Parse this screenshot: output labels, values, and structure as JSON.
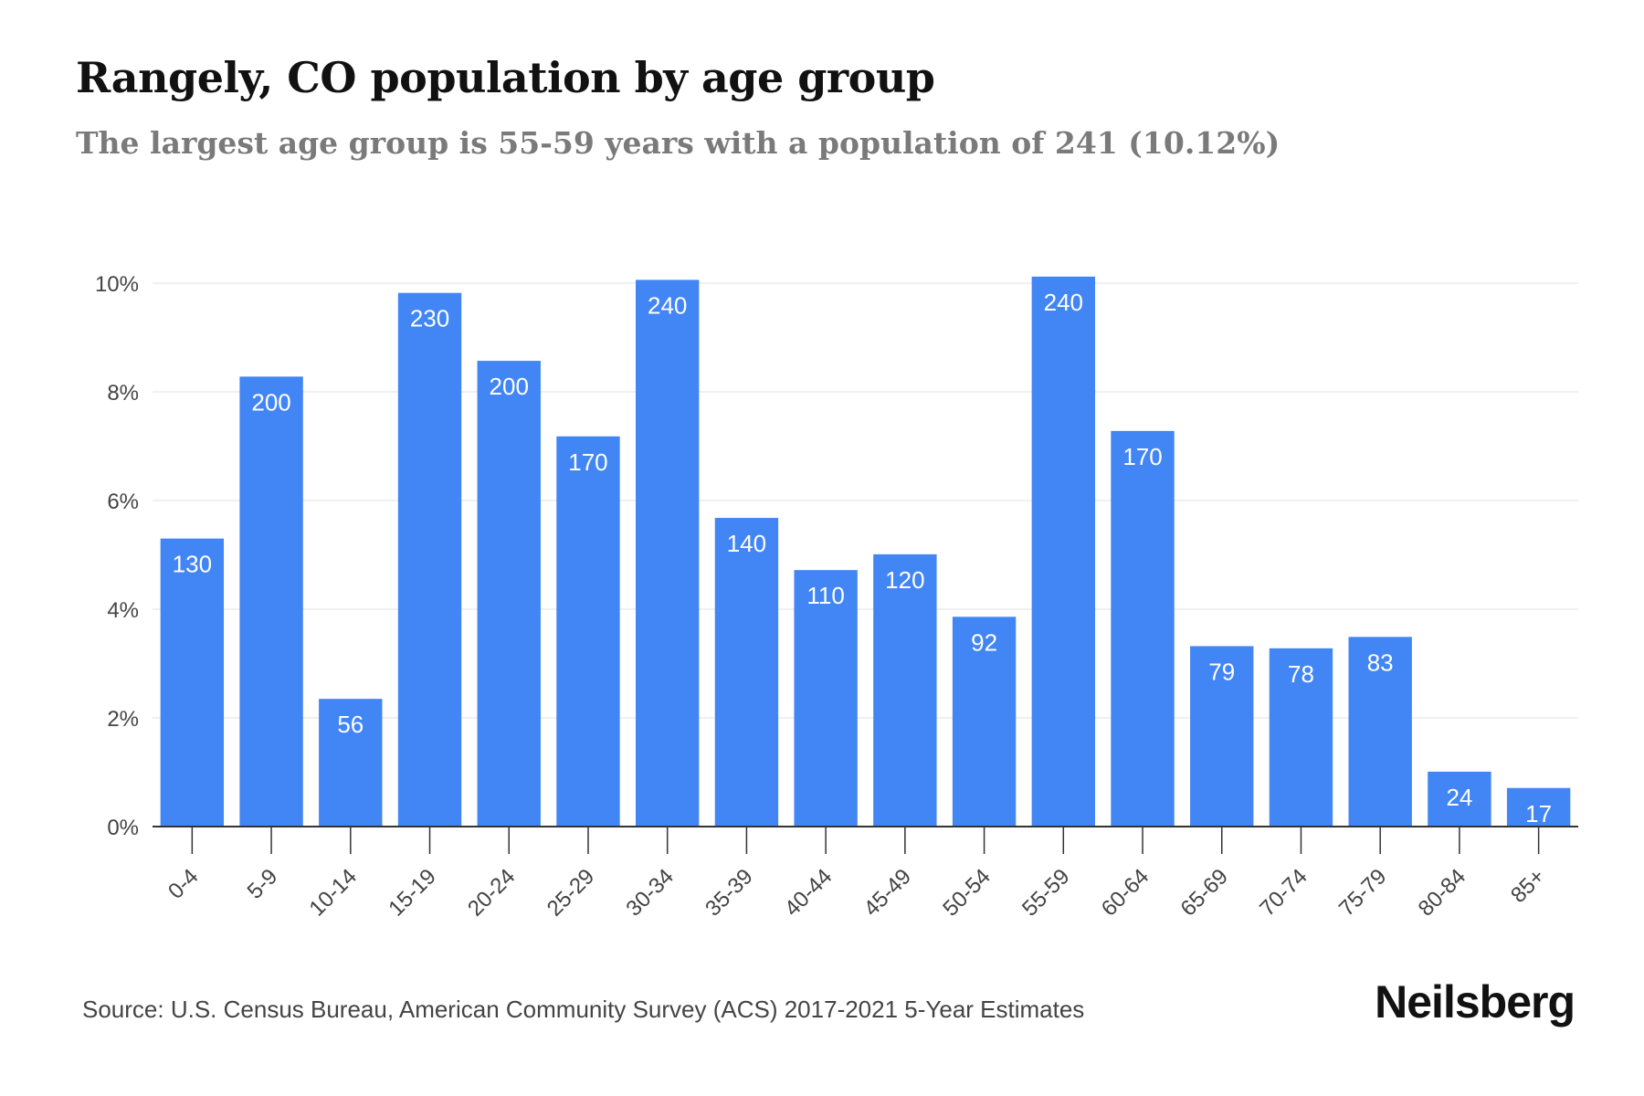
{
  "header": {
    "title": "Rangely, CO population by age group",
    "subtitle": "The largest age group is 55-59 years with a population of 241 (10.12%)"
  },
  "footer": {
    "source": "Source: U.S. Census Bureau, American Community Survey (ACS) 2017-2021 5-Year Estimates",
    "brand": "Neilsberg"
  },
  "chart_data": {
    "type": "bar",
    "title": "Rangely, CO population by age group",
    "subtitle": "The largest age group is 55-59 years with a population of 241 (10.12%)",
    "xlabel": "",
    "ylabel": "",
    "categories": [
      "0-4",
      "5-9",
      "10-14",
      "15-19",
      "20-24",
      "25-29",
      "30-34",
      "35-39",
      "40-44",
      "45-49",
      "50-54",
      "55-59",
      "60-64",
      "65-69",
      "70-74",
      "75-79",
      "80-84",
      "85+"
    ],
    "values": [
      5.3,
      8.28,
      2.35,
      9.82,
      8.57,
      7.18,
      10.06,
      5.68,
      4.72,
      5.01,
      3.86,
      10.12,
      7.28,
      3.32,
      3.28,
      3.49,
      1.01,
      0.71
    ],
    "data_labels": [
      "130",
      "200",
      "56",
      "230",
      "200",
      "170",
      "240",
      "140",
      "110",
      "120",
      "92",
      "240",
      "170",
      "79",
      "78",
      "83",
      "24",
      "17"
    ],
    "ylim": [
      0,
      10
    ],
    "yticks": [
      0,
      2,
      4,
      6,
      8,
      10
    ],
    "ytick_labels": [
      "0%",
      "2%",
      "4%",
      "6%",
      "8%",
      "10%"
    ],
    "grid": true,
    "legend": "none",
    "colors": {
      "bar": "#4285F4",
      "bar_label": "#ffffff",
      "grid": "#ececec",
      "axis": "#333333",
      "tick_text": "#444444"
    }
  }
}
